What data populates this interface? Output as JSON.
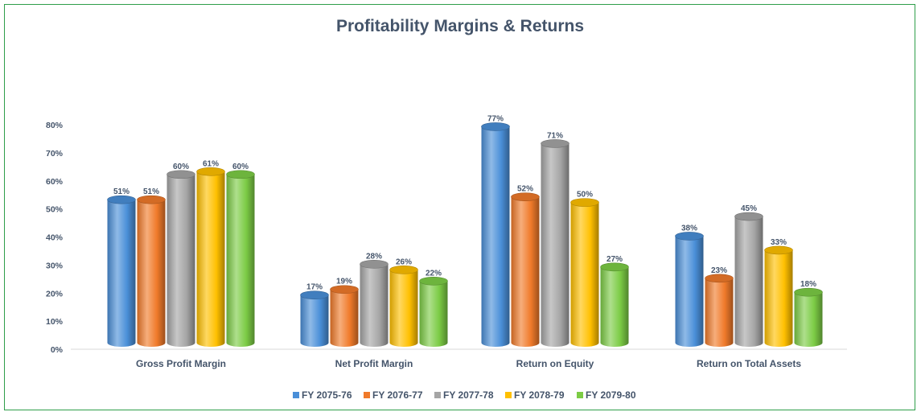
{
  "chart_data": {
    "type": "bar",
    "title": "Profitability Margins & Returns",
    "xlabel": "",
    "ylabel": "",
    "categories": [
      "Gross Profit Margin",
      "Net Profit Margin",
      "Return on Equity",
      "Return on Total Assets"
    ],
    "ylim": [
      0,
      80
    ],
    "yticks": [
      "0%",
      "10%",
      "20%",
      "30%",
      "40%",
      "50%",
      "60%",
      "70%",
      "80%"
    ],
    "value_suffix": "%",
    "grid": false,
    "legend_position": "bottom",
    "series": [
      {
        "name": "FY 2075-76",
        "color": "#4a8fd8",
        "values": [
          51,
          17,
          77,
          38
        ]
      },
      {
        "name": "FY 2076-77",
        "color": "#f07a2a",
        "values": [
          51,
          19,
          52,
          23
        ]
      },
      {
        "name": "FY 2077-78",
        "color": "#a5a5a5",
        "values": [
          60,
          28,
          71,
          45
        ]
      },
      {
        "name": "FY 2078-79",
        "color": "#ffc000",
        "values": [
          61,
          26,
          50,
          33
        ]
      },
      {
        "name": "FY 2079-80",
        "color": "#7ccc45",
        "values": [
          60,
          22,
          27,
          18
        ]
      }
    ]
  }
}
